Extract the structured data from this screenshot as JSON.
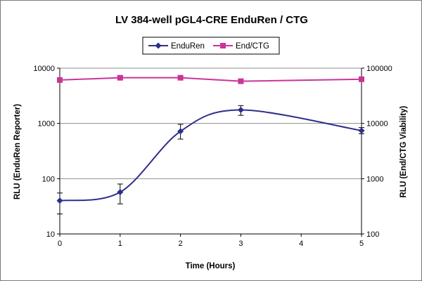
{
  "chart_data": {
    "type": "line",
    "title": "LV 384-well pGL4-CRE EnduRen / CTG",
    "xlabel": "Time (Hours)",
    "ylabel": "RLU (EnduRen Reporter)",
    "y2label": "RLU (End/CTG Viability)",
    "xlim": [
      0,
      5
    ],
    "x_ticks": [
      "0",
      "1",
      "2",
      "3",
      "4",
      "5"
    ],
    "ylim": [
      10,
      10000
    ],
    "y_scale": "log",
    "y_ticks": [
      "10",
      "100",
      "1000",
      "10000"
    ],
    "y2lim": [
      100,
      100000
    ],
    "y2_scale": "log",
    "y2_ticks": [
      "100",
      "1000",
      "10000",
      "100000"
    ],
    "grid": "horizontal",
    "legend_position": "top",
    "series": [
      {
        "name": "EnduRen",
        "axis": "left",
        "color": "#2e2e8c",
        "marker": "diamond",
        "smooth": true,
        "x": [
          0,
          1,
          2,
          3,
          5
        ],
        "y": [
          40,
          57,
          720,
          1750,
          740
        ],
        "err_low": [
          23,
          35,
          520,
          1400,
          650
        ],
        "err_high": [
          55,
          80,
          960,
          2100,
          840
        ]
      },
      {
        "name": "End/CTG",
        "axis": "right",
        "color": "#cc3399",
        "marker": "square",
        "smooth": false,
        "x": [
          0,
          1,
          2,
          3,
          5
        ],
        "y": [
          61000,
          67000,
          67000,
          58000,
          63000
        ],
        "err_low": [
          58000,
          64000,
          64000,
          53000,
          60000
        ],
        "err_high": [
          64000,
          70000,
          70000,
          63000,
          66000
        ]
      }
    ]
  }
}
